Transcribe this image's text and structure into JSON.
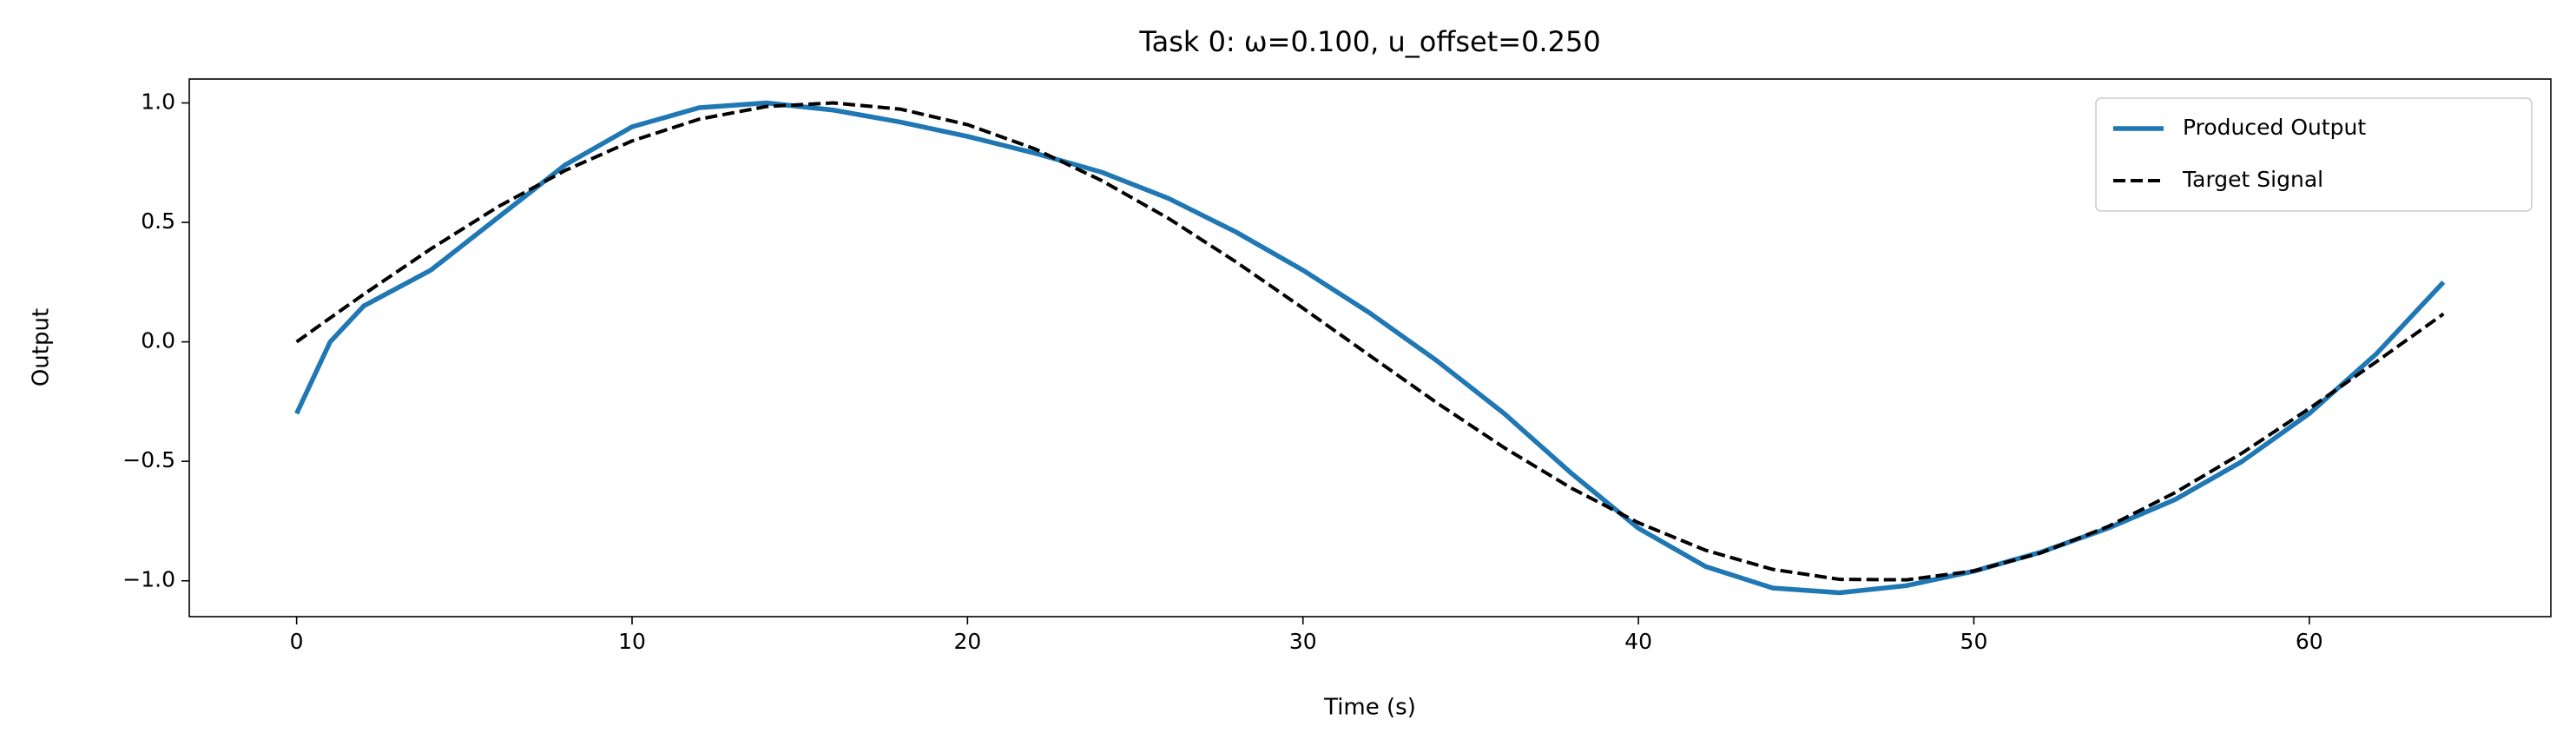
{
  "chart_data": {
    "type": "line",
    "title": "Task 0: ω=0.100, u_offset=0.250",
    "xlabel": "Time (s)",
    "ylabel": "Output",
    "x": [
      0,
      1,
      2,
      4,
      6,
      8,
      10,
      12,
      14,
      16,
      18,
      20,
      22,
      24,
      26,
      28,
      30,
      32,
      34,
      36,
      38,
      40,
      42,
      44,
      46,
      48,
      50,
      52,
      54,
      56,
      58,
      60,
      62,
      64
    ],
    "series": [
      {
        "name": "Produced Output",
        "color": "#1f77b4",
        "style": "solid",
        "values": [
          -0.3,
          0.0,
          0.15,
          0.3,
          0.52,
          0.74,
          0.9,
          0.98,
          1.0,
          0.97,
          0.92,
          0.86,
          0.79,
          0.71,
          0.6,
          0.46,
          0.3,
          0.12,
          -0.08,
          -0.3,
          -0.55,
          -0.78,
          -0.94,
          -1.03,
          -1.05,
          -1.02,
          -0.96,
          -0.88,
          -0.78,
          -0.66,
          -0.5,
          -0.3,
          -0.05,
          0.25
        ]
      },
      {
        "name": "Target Signal",
        "color": "#000000",
        "style": "dashed",
        "values": [
          0.0,
          0.1,
          0.199,
          0.389,
          0.565,
          0.717,
          0.841,
          0.932,
          0.985,
          1.0,
          0.974,
          0.909,
          0.808,
          0.675,
          0.516,
          0.335,
          0.141,
          -0.058,
          -0.256,
          -0.443,
          -0.612,
          -0.757,
          -0.872,
          -0.952,
          -0.994,
          -0.996,
          -0.959,
          -0.883,
          -0.773,
          -0.631,
          -0.465,
          -0.279,
          -0.083,
          0.117
        ]
      }
    ],
    "xlim": [
      -3.2,
      67.2
    ],
    "ylim": [
      -1.15,
      1.1
    ],
    "xticks": [
      0,
      10,
      20,
      30,
      40,
      50,
      60
    ],
    "yticks": [
      {
        "value": -1,
        "label": "−1.0"
      },
      {
        "value": -0.5,
        "label": "−0.5"
      },
      {
        "value": 0,
        "label": "0.0"
      },
      0.5,
      {
        "value": 1,
        "label": "1.0"
      }
    ],
    "legend": "upper right",
    "grid": false
  }
}
